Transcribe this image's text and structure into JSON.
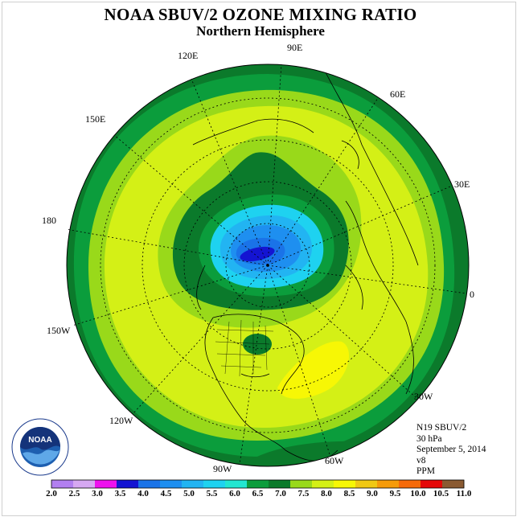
{
  "title": "NOAA SBUV/2 OZONE MIXING RATIO",
  "subtitle": "Northern Hemisphere",
  "longitude_labels": [
    "90E",
    "60E",
    "30E",
    "0",
    "30W",
    "60W",
    "90W",
    "120W",
    "150W",
    "180",
    "150E",
    "120E"
  ],
  "info": {
    "instrument": "N19 SBUV/2",
    "level": "30 hPa",
    "date": "September 5, 2014",
    "version": "v8",
    "units": "PPM"
  },
  "logo_text": "NOAA",
  "colorbar": {
    "labels": [
      "2.0",
      "2.5",
      "3.0",
      "3.5",
      "4.0",
      "4.5",
      "5.0",
      "5.5",
      "6.0",
      "6.5",
      "7.0",
      "7.5",
      "8.0",
      "8.5",
      "9.0",
      "9.5",
      "10.0",
      "10.5",
      "11.0"
    ],
    "colors": [
      "#b27ff0",
      "#d6a8f2",
      "#ee11ee",
      "#1414d2",
      "#1a73e8",
      "#1e8ff0",
      "#22b4f2",
      "#1ed2f0",
      "#22e6d0",
      "#0b9d3c",
      "#0b7a2b",
      "#99d91a",
      "#d4f016",
      "#f7f705",
      "#f0c814",
      "#f59b0a",
      "#f56a0a",
      "#e50808",
      "#8a5a32"
    ]
  },
  "colors": {
    "ring_dark": "#0b7a2b",
    "ring_medium": "#0b9d3c",
    "yellow_green": "#99d91a",
    "light_yellow_green": "#d4f016",
    "yellow": "#f7f705",
    "low_core_blue": "#1414d2"
  }
}
